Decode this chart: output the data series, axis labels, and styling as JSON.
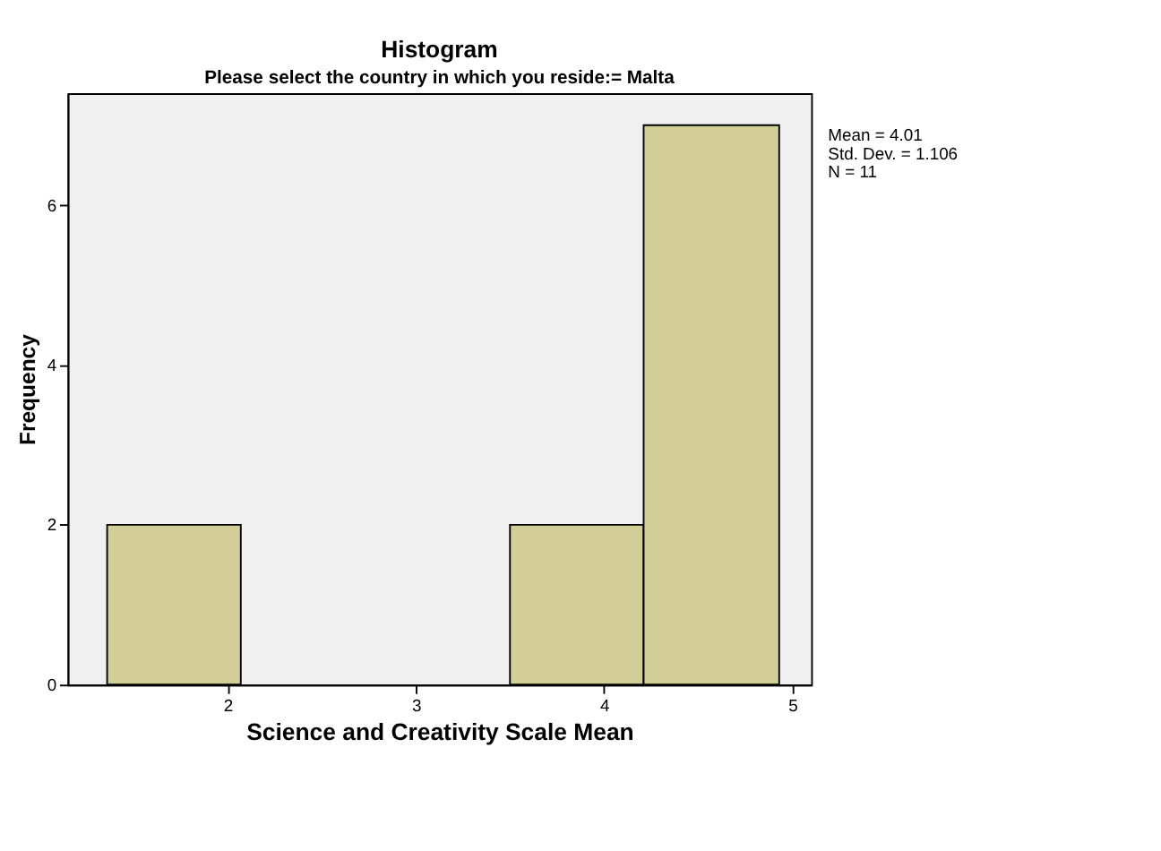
{
  "chart_data": {
    "type": "histogram",
    "title": "Histogram",
    "subtitle": "Please select the country in which you reside:= Malta",
    "xlabel": "Science and Creativity Scale Mean",
    "ylabel": "Frequency",
    "bins": [
      1.36,
      2.07,
      3.5,
      4.21,
      4.93
    ],
    "values": [
      2,
      0,
      2,
      7
    ],
    "color": "#d3ce97",
    "xlim": [
      1.15,
      5.1
    ],
    "ylim": [
      0,
      7.4
    ],
    "xticks": [
      2,
      3,
      4,
      5
    ],
    "yticks": [
      0,
      2,
      4,
      6
    ],
    "annotations": [
      "Mean = 4.01",
      "Std. Dev. = 1.106",
      "N = 11"
    ]
  }
}
